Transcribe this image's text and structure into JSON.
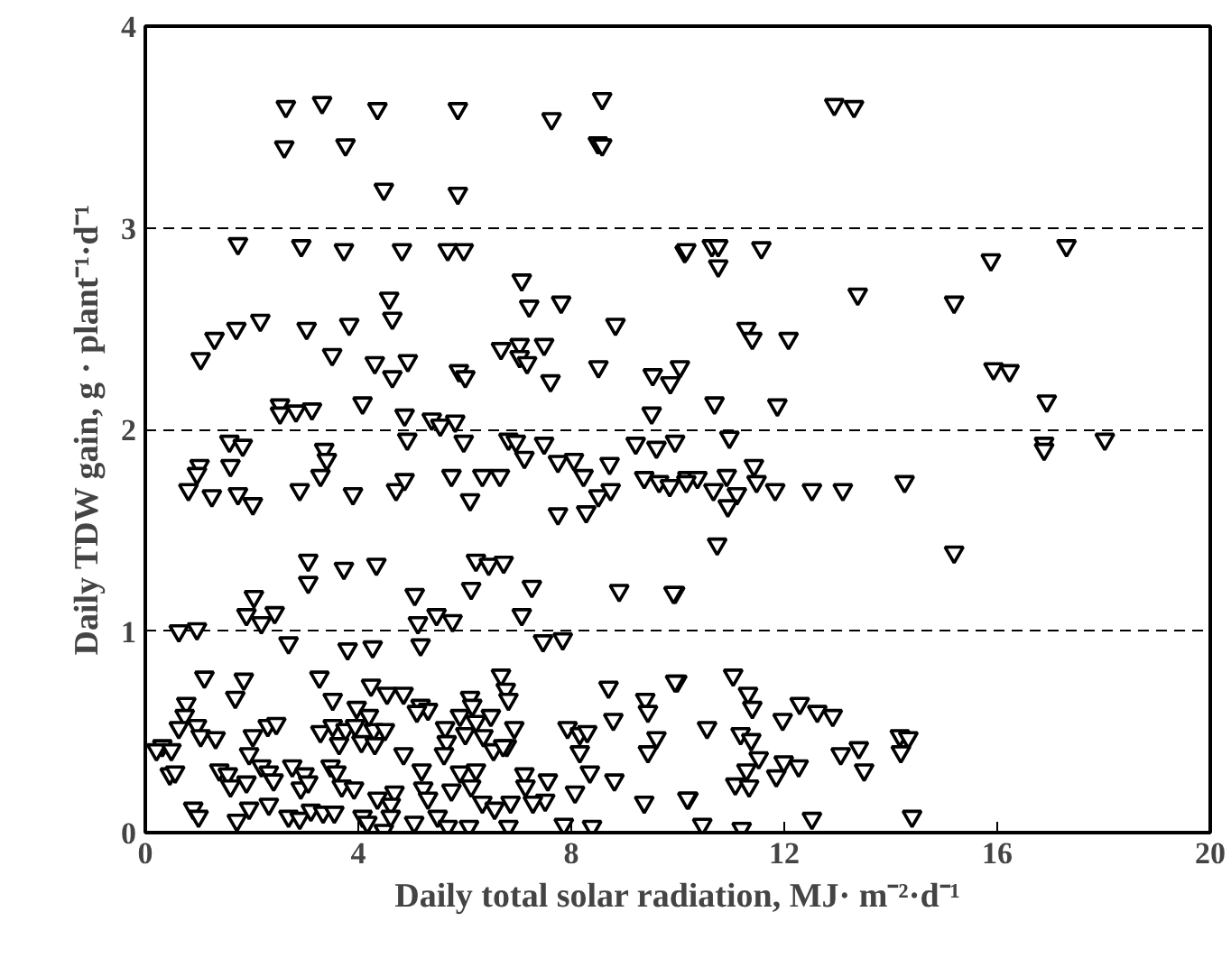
{
  "chart_data": {
    "type": "scatter",
    "xlabel": "Daily total solar radiation, MJ· m⁻²·d⁻¹",
    "ylabel": "Daily TDW gain, g · plant⁻¹·d⁻¹",
    "xlim": [
      0,
      20
    ],
    "ylim": [
      0,
      4
    ],
    "xticks": [
      0,
      4,
      8,
      12,
      16,
      20
    ],
    "yticks": [
      0,
      1,
      2,
      3,
      4
    ],
    "grid": "y",
    "marker": "triangle",
    "series": [
      {
        "color": "#000000",
        "x": [
          2.64,
          3.32,
          4.36,
          5.87,
          7.63,
          8.58,
          2.61,
          3.76,
          8.5,
          8.58,
          4.48,
          5.87,
          1.74,
          2.93,
          3.73,
          4.82,
          5.68,
          5.98,
          10.13,
          7.07,
          4.58,
          7.21,
          7.81,
          4.64,
          8.83,
          1.04,
          1.3,
          1.71,
          2.16,
          3.03,
          3.83,
          3.51,
          4.31,
          4.93,
          4.64,
          5.89,
          6.01,
          6.68,
          7.03,
          7.03,
          7.17,
          7.49,
          7.61,
          8.51,
          9.53,
          9.86,
          10.04,
          2.53,
          2.53,
          2.83,
          3.13,
          4.08,
          4.87,
          5.38,
          5.54,
          5.82,
          9.51,
          12.94,
          13.31,
          10.16,
          10.64,
          10.76,
          10.76,
          11.57,
          15.88,
          17.3,
          13.38,
          15.19,
          11.29,
          11.4,
          12.08,
          10.69,
          11.87,
          15.93,
          16.23,
          16.93,
          10.97,
          16.88,
          18.02,
          16.88,
          10.18,
          10.37,
          10.67,
          10.92,
          11.11,
          10.94,
          11.43,
          11.48,
          11.83,
          12.52,
          13.1,
          14.26,
          10.74,
          15.19,
          9.95,
          9.99,
          11.04,
          11.32,
          11.4,
          12.29,
          12.62,
          12.91,
          11.97,
          10.55,
          11.18,
          11.38,
          11.52,
          11.99,
          12.27,
          13.06,
          13.4,
          13.5,
          14.17,
          14.33,
          14.19,
          11.29,
          11.08,
          11.34,
          11.85,
          10.2,
          10.46,
          11.2,
          12.52,
          14.4,
          1.58,
          1.83,
          3.36,
          3.41,
          3.29,
          1.02,
          0.97,
          1.6,
          0.81,
          1.25,
          1.74,
          2.02,
          2.9,
          3.9,
          4.71,
          4.87,
          4.92,
          5.75,
          6.1,
          5.98,
          6.33,
          6.66,
          6.82,
          6.96,
          7.12,
          7.49,
          7.75,
          8.05,
          7.75,
          8.28,
          8.23,
          8.51,
          8.74,
          8.72,
          9.21,
          9.6,
          9.95,
          9.37,
          9.65,
          9.85,
          10.16,
          3.06,
          3.06,
          3.73,
          4.34,
          2.04,
          1.9,
          2.18,
          2.43,
          0.63,
          0.97,
          2.69,
          3.8,
          4.27,
          5.06,
          5.12,
          5.47,
          5.77,
          5.17,
          6.21,
          6.45,
          6.73,
          6.12,
          7.26,
          7.07,
          7.47,
          7.84,
          8.9,
          9.92,
          1.11,
          1.85,
          1.69,
          3.27,
          3.52,
          4.24,
          4.54,
          4.85,
          5.17,
          5.31,
          6.1,
          6.68,
          6.77,
          6.82,
          8.7,
          9.39,
          9.44,
          9.95,
          0.77,
          0.74,
          0.63,
          0.32,
          0.21,
          0.49,
          0.97,
          1.04,
          1.32,
          0.46,
          0.56,
          2.02,
          2.3,
          2.46,
          1.95,
          1.9,
          3.29,
          3.52,
          3.76,
          3.94,
          4.29,
          4.5,
          3.64,
          3.97,
          4.2,
          4.06,
          4.31,
          4.85,
          5.1,
          5.63,
          5.66,
          5.91,
          6.01,
          6.21,
          6.49,
          6.93,
          6.79,
          6.14,
          6.35,
          6.54,
          6.72,
          7.93,
          8.16,
          8.3,
          8.16,
          8.79,
          9.6,
          9.44,
          1.39,
          1.55,
          1.6,
          2.18,
          2.32,
          2.41,
          2.76,
          2.99,
          2.92,
          3.06,
          3.48,
          3.59,
          3.69,
          3.92,
          4.36,
          4.68,
          4.61,
          5.19,
          5.22,
          5.31,
          5.61,
          5.75,
          5.91,
          6.12,
          6.21,
          7.12,
          7.14,
          7.56,
          7.51,
          8.07,
          8.35,
          8.81,
          9.37,
          10.18,
          6.33,
          6.56,
          6.86,
          7.28,
          0.9,
          1.0,
          1.72,
          1.95,
          2.32,
          2.69,
          2.9,
          3.11,
          3.34,
          3.55,
          4.08,
          4.17,
          4.48,
          4.61,
          5.05,
          5.49,
          5.68,
          6.08,
          6.82,
          7.86,
          8.39
        ],
        "values": [
          3.6,
          3.62,
          3.59,
          3.59,
          3.54,
          3.64,
          3.4,
          3.41,
          3.42,
          3.41,
          3.19,
          3.17,
          2.92,
          2.91,
          2.89,
          2.89,
          2.89,
          2.89,
          2.88,
          2.74,
          2.65,
          2.61,
          2.63,
          2.55,
          2.52,
          2.35,
          2.45,
          2.5,
          2.54,
          2.5,
          2.52,
          2.37,
          2.33,
          2.34,
          2.26,
          2.29,
          2.26,
          2.4,
          2.42,
          2.36,
          2.33,
          2.42,
          2.24,
          2.31,
          2.27,
          2.23,
          2.31,
          2.12,
          2.08,
          2.09,
          2.1,
          2.13,
          2.07,
          2.05,
          2.02,
          2.04,
          2.08,
          3.61,
          3.6,
          2.89,
          2.91,
          2.91,
          2.81,
          2.9,
          2.84,
          2.91,
          2.67,
          2.63,
          2.5,
          2.45,
          2.45,
          2.13,
          2.12,
          2.3,
          2.29,
          2.14,
          1.96,
          1.93,
          1.95,
          1.9,
          1.76,
          1.76,
          1.7,
          1.77,
          1.68,
          1.62,
          1.82,
          1.74,
          1.7,
          1.7,
          1.7,
          1.74,
          1.43,
          1.39,
          1.19,
          0.75,
          0.78,
          0.69,
          0.62,
          0.64,
          0.6,
          0.58,
          0.56,
          0.52,
          0.49,
          0.46,
          0.37,
          0.35,
          0.33,
          0.39,
          0.42,
          0.31,
          0.48,
          0.47,
          0.4,
          0.31,
          0.24,
          0.23,
          0.28,
          0.17,
          0.04,
          0.02,
          0.07,
          0.08,
          1.94,
          1.92,
          1.9,
          1.85,
          1.77,
          1.82,
          1.78,
          1.82,
          1.7,
          1.67,
          1.68,
          1.63,
          1.7,
          1.68,
          1.7,
          1.75,
          1.95,
          1.77,
          1.65,
          1.94,
          1.77,
          1.77,
          1.95,
          1.94,
          1.86,
          1.93,
          1.84,
          1.85,
          1.58,
          1.59,
          1.77,
          1.67,
          1.7,
          1.83,
          1.93,
          1.91,
          1.94,
          1.76,
          1.74,
          1.72,
          1.74,
          1.35,
          1.24,
          1.31,
          1.33,
          1.17,
          1.08,
          1.04,
          1.09,
          1.0,
          1.01,
          0.94,
          0.91,
          0.92,
          1.18,
          1.04,
          1.08,
          1.05,
          0.93,
          1.35,
          1.33,
          1.34,
          1.21,
          1.22,
          1.08,
          0.95,
          0.96,
          1.2,
          1.19,
          0.77,
          0.76,
          0.67,
          0.77,
          0.66,
          0.73,
          0.69,
          0.69,
          0.63,
          0.61,
          0.67,
          0.78,
          0.71,
          0.66,
          0.72,
          0.66,
          0.6,
          0.75,
          0.64,
          0.58,
          0.52,
          0.43,
          0.41,
          0.41,
          0.53,
          0.48,
          0.47,
          0.29,
          0.3,
          0.48,
          0.53,
          0.54,
          0.39,
          0.25,
          0.5,
          0.53,
          0.51,
          0.53,
          0.51,
          0.51,
          0.44,
          0.62,
          0.58,
          0.45,
          0.44,
          0.39,
          0.6,
          0.52,
          0.45,
          0.58,
          0.49,
          0.55,
          0.58,
          0.52,
          0.43,
          0.63,
          0.48,
          0.41,
          0.43,
          0.52,
          0.49,
          0.5,
          0.4,
          0.56,
          0.47,
          0.4,
          0.31,
          0.29,
          0.23,
          0.33,
          0.3,
          0.26,
          0.33,
          0.29,
          0.22,
          0.25,
          0.33,
          0.3,
          0.23,
          0.22,
          0.17,
          0.2,
          0.14,
          0.31,
          0.22,
          0.17,
          0.39,
          0.21,
          0.3,
          0.23,
          0.31,
          0.29,
          0.23,
          0.26,
          0.16,
          0.2,
          0.3,
          0.26,
          0.15,
          0.17,
          0.15,
          0.12,
          0.15,
          0.15,
          0.12,
          0.08,
          0.06,
          0.12,
          0.14,
          0.08,
          0.07,
          0.11,
          0.1,
          0.1,
          0.08,
          0.05,
          0.01,
          0.08,
          0.05,
          0.08,
          0.03,
          0.03,
          0.03,
          0.04,
          0.03
        ]
      }
    ]
  }
}
